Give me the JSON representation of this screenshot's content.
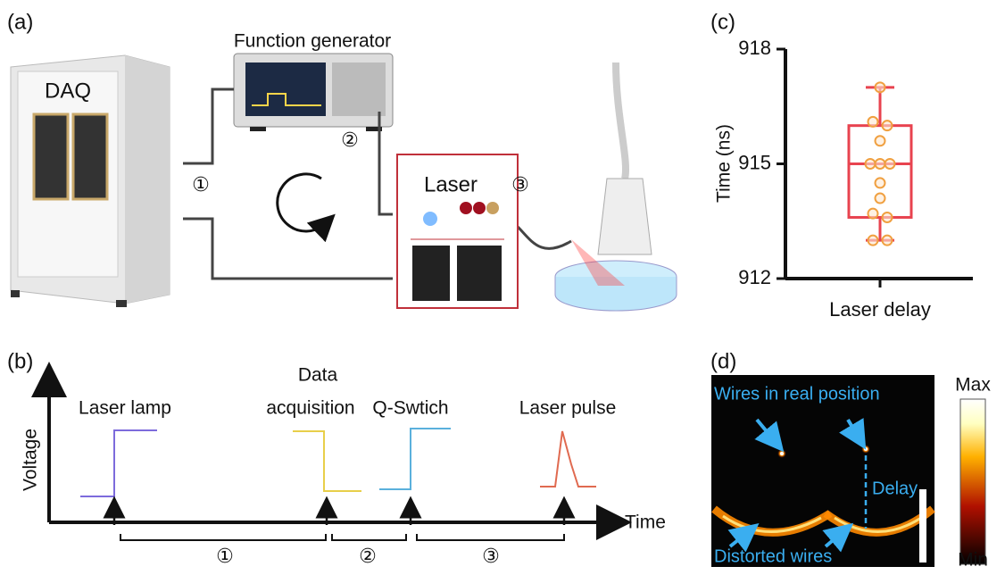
{
  "panel_labels": [
    "(a)",
    "(b)",
    "(c)",
    "(d)"
  ],
  "panel_a": {
    "daq": "DAQ",
    "function_generator": "Function generator",
    "laser": "Laser",
    "steps": [
      "①",
      "②",
      "③"
    ]
  },
  "panel_b": {
    "y_label": "Voltage",
    "x_label": "Time",
    "events": [
      [
        "Laser lamp"
      ],
      [
        "Data",
        "acquisition"
      ],
      [
        "Q-Swtich"
      ],
      [
        "Laser pulse"
      ]
    ],
    "intervals": [
      "①",
      "②",
      "③"
    ]
  },
  "chart_data": {
    "type": "box",
    "ylabel": "Time (ns)",
    "categories": [
      "Laser delay"
    ],
    "box": {
      "whisker_low": 913.0,
      "q1": 913.6,
      "median": 915.0,
      "q3": 916.0,
      "whisker_high": 917.0
    },
    "points": [
      917.0,
      916.1,
      916.0,
      915.6,
      915.0,
      915.0,
      915.0,
      914.5,
      914.1,
      913.7,
      913.6,
      913.0,
      913.0
    ],
    "color": "#e8434f",
    "point_color": "#f0a040",
    "ylim": [
      912,
      918
    ],
    "yticks": [
      912,
      915,
      918
    ]
  },
  "panel_d": {
    "annotation_top": "Wires in real position",
    "delay": "Delay",
    "annotation_bottom": "Distorted wires",
    "colorbar_max": "Max",
    "colorbar_min": "Min"
  }
}
